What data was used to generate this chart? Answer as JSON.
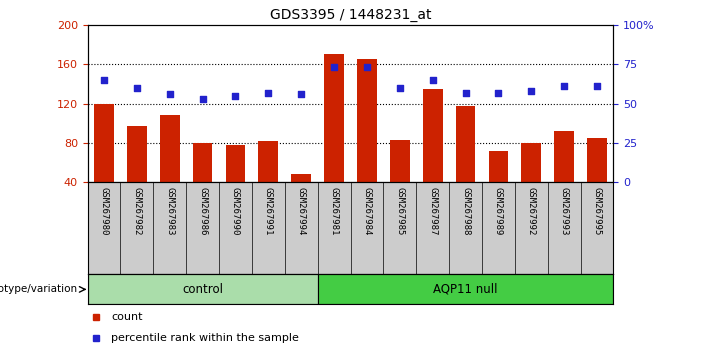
{
  "title": "GDS3395 / 1448231_at",
  "samples": [
    "GSM267980",
    "GSM267982",
    "GSM267983",
    "GSM267986",
    "GSM267990",
    "GSM267991",
    "GSM267994",
    "GSM267981",
    "GSM267984",
    "GSM267985",
    "GSM267987",
    "GSM267988",
    "GSM267989",
    "GSM267992",
    "GSM267993",
    "GSM267995"
  ],
  "counts": [
    120,
    97,
    108,
    80,
    78,
    82,
    48,
    170,
    165,
    83,
    135,
    118,
    72,
    80,
    92,
    85
  ],
  "percentiles": [
    65,
    60,
    56,
    53,
    55,
    57,
    56,
    73,
    73,
    60,
    65,
    57,
    57,
    58,
    61,
    61
  ],
  "groups": [
    {
      "label": "control",
      "start": 0,
      "end": 7,
      "color": "#aaddaa"
    },
    {
      "label": "AQP11 null",
      "start": 7,
      "end": 16,
      "color": "#44cc44"
    }
  ],
  "ylim_left": [
    40,
    200
  ],
  "ylim_right": [
    0,
    100
  ],
  "yticks_left": [
    40,
    80,
    120,
    160,
    200
  ],
  "yticks_right": [
    0,
    25,
    50,
    75,
    100
  ],
  "ytick_labels_right": [
    "0",
    "25",
    "50",
    "75",
    "100%"
  ],
  "bar_color": "#cc2200",
  "dot_color": "#2222cc",
  "background_color": "#ffffff",
  "plot_bg": "#ffffff",
  "tick_area_bg": "#cccccc",
  "legend_count_label": "count",
  "legend_pct_label": "percentile rank within the sample",
  "genotype_label": "genotype/variation",
  "n_control": 7,
  "n_total": 16
}
